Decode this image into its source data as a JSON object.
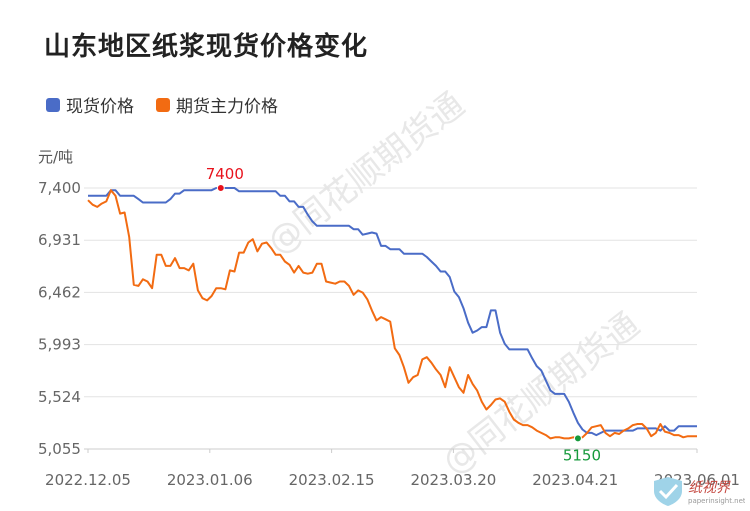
{
  "title": "山东地区纸浆现货价格变化",
  "watermark_text": "@同花顺期货通",
  "logo": {
    "text": "纸视界",
    "subtext": "paperinsight.net"
  },
  "colors": {
    "spot": "#4a6cc7",
    "futures": "#f26b12",
    "max_marker": "#e8121c",
    "min_marker": "#179a3c",
    "grid": "#e3e3e3",
    "axis_text": "#666666"
  },
  "chart_data": {
    "type": "line",
    "ylabel": "元/吨",
    "ylim": [
      5055,
      7400
    ],
    "y_ticks": [
      "7,400",
      "6,931",
      "6,462",
      "5,993",
      "5,524",
      "5,055"
    ],
    "x_ticks": [
      "2022.12.05",
      "2023.01.06",
      "2023.02.15",
      "2023.03.20",
      "2023.04.21",
      "2023.06.01"
    ],
    "annotations": [
      {
        "series": "现货价格",
        "index": 29,
        "value": 7400,
        "label": "7400"
      },
      {
        "series": "期货主力价格",
        "index": 107,
        "value": 5150,
        "label": "5150"
      }
    ],
    "series": [
      {
        "name": "现货价格",
        "values": [
          7330,
          7330,
          7330,
          7330,
          7330,
          7380,
          7380,
          7330,
          7330,
          7330,
          7330,
          7300,
          7270,
          7270,
          7270,
          7270,
          7270,
          7270,
          7300,
          7350,
          7350,
          7380,
          7380,
          7380,
          7380,
          7380,
          7380,
          7380,
          7400,
          7400,
          7400,
          7400,
          7400,
          7370,
          7370,
          7370,
          7370,
          7370,
          7370,
          7370,
          7370,
          7370,
          7330,
          7330,
          7280,
          7280,
          7230,
          7230,
          7160,
          7100,
          7060,
          7060,
          7060,
          7060,
          7060,
          7060,
          7060,
          7060,
          7030,
          7030,
          6980,
          6990,
          7000,
          6990,
          6880,
          6880,
          6850,
          6850,
          6850,
          6810,
          6810,
          6810,
          6810,
          6810,
          6780,
          6740,
          6700,
          6650,
          6650,
          6600,
          6470,
          6420,
          6320,
          6190,
          6100,
          6120,
          6150,
          6150,
          6300,
          6300,
          6100,
          6000,
          5950,
          5950,
          5950,
          5950,
          5950,
          5870,
          5800,
          5760,
          5670,
          5580,
          5550,
          5550,
          5550,
          5480,
          5380,
          5290,
          5230,
          5200,
          5200,
          5180,
          5200,
          5220,
          5220,
          5220,
          5220,
          5220,
          5220,
          5220,
          5240,
          5240,
          5240,
          5240,
          5240,
          5220,
          5260,
          5220,
          5220,
          5260,
          5260,
          5260,
          5260,
          5260
        ]
      },
      {
        "name": "期货主力价格",
        "values": [
          7290,
          7250,
          7230,
          7260,
          7280,
          7380,
          7330,
          7170,
          7180,
          6960,
          6530,
          6520,
          6580,
          6560,
          6500,
          6800,
          6800,
          6700,
          6700,
          6770,
          6680,
          6680,
          6660,
          6720,
          6480,
          6410,
          6390,
          6430,
          6500,
          6500,
          6490,
          6660,
          6650,
          6820,
          6820,
          6910,
          6940,
          6830,
          6900,
          6910,
          6860,
          6800,
          6800,
          6740,
          6710,
          6640,
          6700,
          6640,
          6630,
          6640,
          6720,
          6720,
          6560,
          6550,
          6540,
          6560,
          6560,
          6520,
          6440,
          6480,
          6460,
          6400,
          6300,
          6210,
          6240,
          6220,
          6200,
          5960,
          5900,
          5790,
          5650,
          5700,
          5720,
          5860,
          5880,
          5830,
          5770,
          5720,
          5610,
          5790,
          5700,
          5610,
          5560,
          5720,
          5640,
          5580,
          5480,
          5410,
          5450,
          5500,
          5510,
          5480,
          5390,
          5320,
          5290,
          5270,
          5270,
          5250,
          5220,
          5200,
          5180,
          5150,
          5160,
          5160,
          5150,
          5150,
          5160,
          5150,
          5160,
          5200,
          5250,
          5260,
          5270,
          5200,
          5170,
          5200,
          5190,
          5220,
          5240,
          5270,
          5280,
          5280,
          5240,
          5170,
          5200,
          5280,
          5210,
          5200,
          5180,
          5180,
          5160,
          5170,
          5170,
          5170
        ]
      }
    ]
  }
}
